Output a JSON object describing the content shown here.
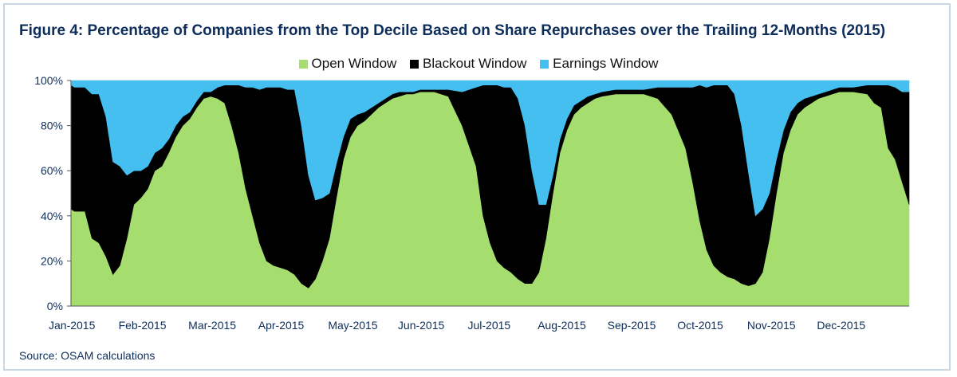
{
  "title": "Figure 4: Percentage of Companies from the Top Decile Based on Share Repurchases over the Trailing 12-Months (2015)",
  "source": "Source: OSAM calculations",
  "colors": {
    "open": "#a6dd6f",
    "blackout": "#000000",
    "earnings": "#44bff0",
    "title": "#0d2d5b"
  },
  "chart_data": {
    "type": "area",
    "stacked": true,
    "legend_position": "top-center",
    "ylim": [
      0,
      100
    ],
    "yticks": [
      0,
      20,
      40,
      60,
      80,
      100
    ],
    "ytick_labels": [
      "0%",
      "20%",
      "40%",
      "60%",
      "80%",
      "100%"
    ],
    "xlim": [
      0,
      12
    ],
    "xtick_positions": [
      0,
      1,
      2,
      3,
      4,
      5,
      6,
      7,
      8,
      9,
      10,
      11
    ],
    "xtick_labels": [
      "Jan-2015",
      "Feb-2015",
      "Mar-2015",
      "Apr-2015",
      "May-2015",
      "Jun-2015",
      "Jul-2015",
      "Aug-2015",
      "Sep-2015",
      "Oct-2015",
      "Nov-2015",
      "Dec-2015"
    ],
    "x": [
      0,
      0.05,
      0.2,
      0.3,
      0.4,
      0.5,
      0.6,
      0.7,
      0.8,
      0.9,
      1.0,
      1.1,
      1.2,
      1.3,
      1.4,
      1.5,
      1.6,
      1.7,
      1.8,
      1.9,
      2.0,
      2.1,
      2.2,
      2.3,
      2.4,
      2.5,
      2.6,
      2.7,
      2.8,
      2.9,
      3.0,
      3.1,
      3.2,
      3.3,
      3.4,
      3.5,
      3.6,
      3.7,
      3.8,
      3.9,
      4.0,
      4.1,
      4.2,
      4.3,
      4.4,
      4.5,
      4.6,
      4.7,
      4.8,
      4.9,
      5.0,
      5.2,
      5.4,
      5.6,
      5.8,
      5.9,
      6.0,
      6.1,
      6.2,
      6.3,
      6.4,
      6.5,
      6.6,
      6.7,
      6.8,
      6.9,
      7.0,
      7.1,
      7.2,
      7.3,
      7.4,
      7.5,
      7.6,
      7.8,
      8.0,
      8.2,
      8.4,
      8.6,
      8.8,
      8.9,
      9.0,
      9.1,
      9.2,
      9.3,
      9.4,
      9.5,
      9.6,
      9.7,
      9.8,
      9.9,
      10.0,
      10.1,
      10.2,
      10.3,
      10.4,
      10.5,
      10.6,
      10.7,
      10.8,
      10.9,
      11.0,
      11.2,
      11.4,
      11.5,
      11.6,
      11.7,
      11.8,
      11.9,
      12.0
    ],
    "series": [
      {
        "name": "Open Window",
        "values": [
          43,
          42,
          42,
          30,
          28,
          22,
          14,
          18,
          30,
          45,
          48,
          52,
          60,
          62,
          68,
          75,
          80,
          83,
          88,
          92,
          93,
          92,
          90,
          80,
          68,
          52,
          40,
          28,
          20,
          18,
          17,
          16,
          14,
          10,
          8,
          12,
          20,
          30,
          48,
          65,
          75,
          80,
          82,
          85,
          88,
          90,
          92,
          93,
          94,
          94,
          95,
          95,
          93,
          80,
          62,
          40,
          28,
          20,
          17,
          15,
          12,
          10,
          10,
          15,
          30,
          50,
          68,
          78,
          85,
          88,
          90,
          92,
          93,
          94,
          94,
          94,
          92,
          85,
          70,
          55,
          38,
          25,
          18,
          15,
          13,
          12,
          10,
          9,
          10,
          15,
          30,
          50,
          68,
          78,
          85,
          88,
          90,
          92,
          93,
          94,
          95,
          95,
          94,
          90,
          88,
          70,
          65,
          55,
          45
        ]
      },
      {
        "name": "Blackout Window",
        "values": [
          55,
          55,
          55,
          64,
          66,
          62,
          50,
          44,
          28,
          15,
          12,
          10,
          8,
          8,
          6,
          5,
          4,
          3,
          3,
          3,
          2,
          5,
          8,
          18,
          30,
          45,
          57,
          68,
          77,
          79,
          80,
          80,
          82,
          70,
          50,
          35,
          28,
          20,
          15,
          10,
          8,
          5,
          4,
          3,
          2,
          2,
          2,
          2,
          1,
          1,
          1,
          1,
          3,
          15,
          35,
          58,
          70,
          78,
          80,
          82,
          80,
          70,
          50,
          30,
          15,
          8,
          6,
          5,
          4,
          3,
          3,
          2,
          2,
          2,
          2,
          2,
          5,
          12,
          27,
          42,
          60,
          72,
          80,
          83,
          85,
          82,
          70,
          50,
          30,
          28,
          20,
          15,
          10,
          8,
          5,
          4,
          3,
          2,
          2,
          2,
          2,
          2,
          4,
          8,
          10,
          28,
          32,
          40,
          50
        ]
      },
      {
        "name": "Earnings Window",
        "values": [
          2,
          3,
          3,
          6,
          6,
          16,
          36,
          38,
          42,
          40,
          40,
          38,
          32,
          30,
          26,
          20,
          16,
          14,
          9,
          5,
          5,
          3,
          2,
          2,
          2,
          3,
          3,
          4,
          3,
          3,
          3,
          4,
          4,
          20,
          42,
          53,
          52,
          50,
          37,
          25,
          17,
          15,
          14,
          12,
          10,
          8,
          6,
          5,
          5,
          5,
          4,
          4,
          4,
          5,
          3,
          2,
          2,
          2,
          3,
          3,
          8,
          20,
          40,
          55,
          55,
          42,
          28,
          17,
          11,
          9,
          7,
          6,
          5,
          4,
          4,
          4,
          3,
          3,
          3,
          3,
          2,
          3,
          2,
          2,
          2,
          6,
          20,
          41,
          60,
          57,
          50,
          35,
          22,
          14,
          10,
          8,
          7,
          6,
          5,
          4,
          3,
          3,
          2,
          2,
          2,
          2,
          3,
          5,
          5
        ]
      }
    ]
  }
}
